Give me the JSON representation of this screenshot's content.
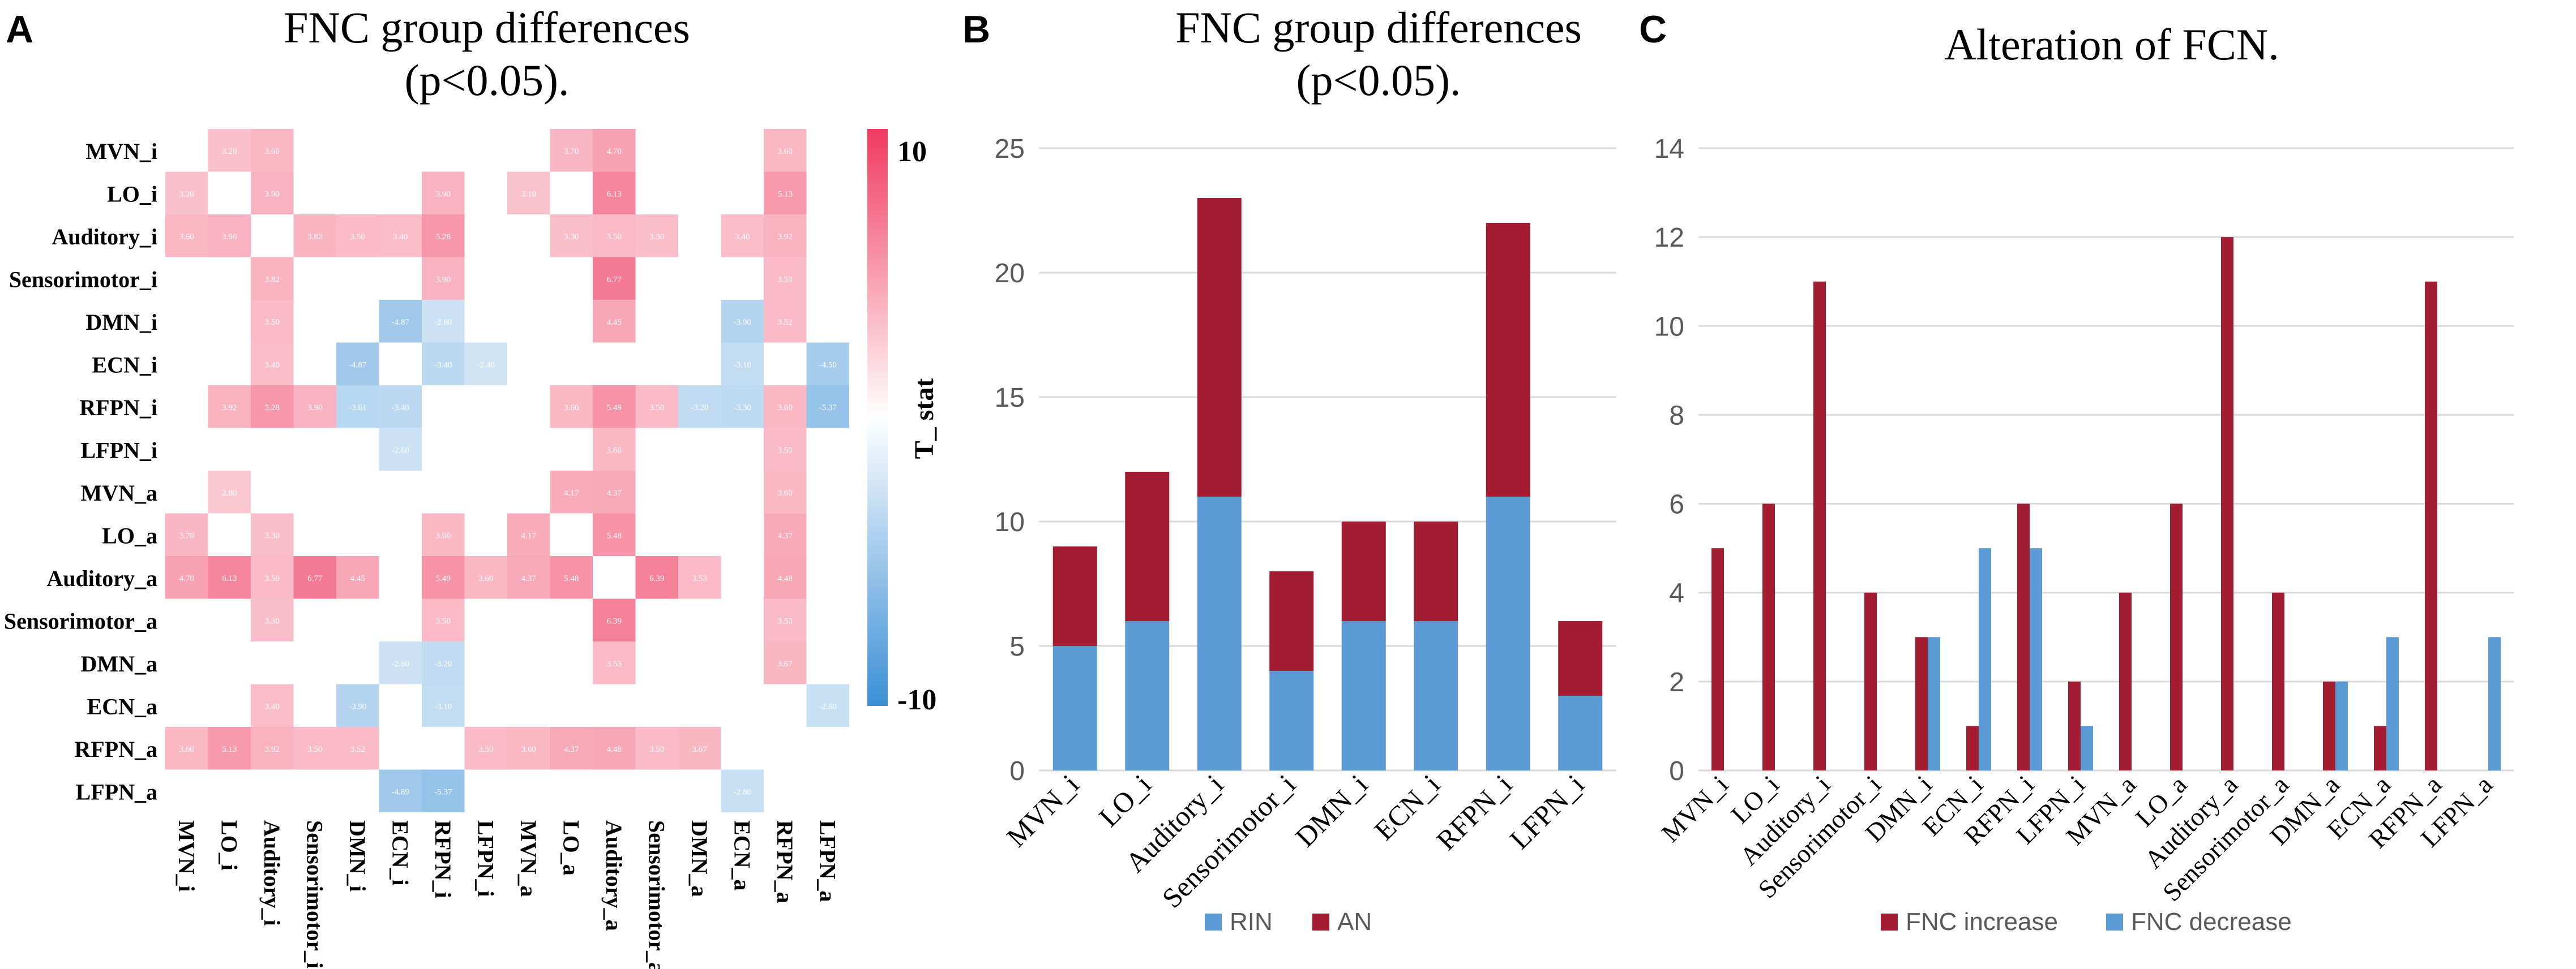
{
  "colors": {
    "positive": "#f03a5f",
    "negative": "#3b8fd6",
    "zero": "#ffffff",
    "rin": "#5b9bd5",
    "an": "#a21c32",
    "increase": "#a21c32",
    "decrease": "#5b9bd5",
    "grid": "#d9d9d9"
  },
  "chart_data": [
    {
      "panel": "A",
      "type": "heatmap",
      "title_line1": "FNC group differences",
      "title_line2": "(p<0.05).",
      "rows": [
        "MVN_i",
        "LO_i",
        "Auditory_i",
        "Sensorimotor_i",
        "DMN_i",
        "ECN_i",
        "RFPN_i",
        "LFPN_i",
        "MVN_a",
        "LO_a",
        "Auditory_a",
        "Sensorimotor_a",
        "DMN_a",
        "ECN_a",
        "RFPN_a",
        "LFPN_a"
      ],
      "cols": [
        "MVN_i",
        "LO_i",
        "Auditory_i",
        "Sensorimotor_i",
        "DMN_i",
        "ECN_i",
        "RFPN_i",
        "LFPN_i",
        "MVN_a",
        "LO_a",
        "Auditory_a",
        "Sensorimotor_a",
        "DMN_a",
        "ECN_a",
        "RFPN_a",
        "LFPN_a"
      ],
      "cells": [
        {
          "r": 0,
          "c": 1,
          "v": 3.2
        },
        {
          "r": 0,
          "c": 2,
          "v": 3.6
        },
        {
          "r": 0,
          "c": 9,
          "v": 3.7
        },
        {
          "r": 0,
          "c": 10,
          "v": 4.7
        },
        {
          "r": 0,
          "c": 14,
          "v": 3.6
        },
        {
          "r": 1,
          "c": 0,
          "v": 3.2
        },
        {
          "r": 1,
          "c": 2,
          "v": 3.9
        },
        {
          "r": 1,
          "c": 6,
          "v": 3.9
        },
        {
          "r": 1,
          "c": 8,
          "v": 3.1
        },
        {
          "r": 1,
          "c": 10,
          "v": 6.13
        },
        {
          "r": 1,
          "c": 14,
          "v": 5.13
        },
        {
          "r": 2,
          "c": 0,
          "v": 3.6
        },
        {
          "r": 2,
          "c": 1,
          "v": 3.9
        },
        {
          "r": 2,
          "c": 3,
          "v": 3.82
        },
        {
          "r": 2,
          "c": 4,
          "v": 3.5
        },
        {
          "r": 2,
          "c": 5,
          "v": 3.4
        },
        {
          "r": 2,
          "c": 6,
          "v": 5.28
        },
        {
          "r": 2,
          "c": 9,
          "v": 3.3
        },
        {
          "r": 2,
          "c": 10,
          "v": 3.5
        },
        {
          "r": 2,
          "c": 11,
          "v": 3.3
        },
        {
          "r": 2,
          "c": 13,
          "v": 3.4
        },
        {
          "r": 2,
          "c": 14,
          "v": 3.92
        },
        {
          "r": 3,
          "c": 2,
          "v": 3.82
        },
        {
          "r": 3,
          "c": 6,
          "v": 3.9
        },
        {
          "r": 3,
          "c": 10,
          "v": 6.77
        },
        {
          "r": 3,
          "c": 14,
          "v": 3.5
        },
        {
          "r": 4,
          "c": 2,
          "v": 3.5
        },
        {
          "r": 4,
          "c": 5,
          "v": -4.87
        },
        {
          "r": 4,
          "c": 6,
          "v": -2.6
        },
        {
          "r": 4,
          "c": 10,
          "v": 4.45
        },
        {
          "r": 4,
          "c": 13,
          "v": -3.9
        },
        {
          "r": 4,
          "c": 14,
          "v": 3.52
        },
        {
          "r": 5,
          "c": 2,
          "v": 3.4
        },
        {
          "r": 5,
          "c": 4,
          "v": -4.87
        },
        {
          "r": 5,
          "c": 6,
          "v": -3.4
        },
        {
          "r": 5,
          "c": 7,
          "v": -2.4
        },
        {
          "r": 5,
          "c": 13,
          "v": -3.1
        },
        {
          "r": 5,
          "c": 15,
          "v": -4.5
        },
        {
          "r": 6,
          "c": 1,
          "v": 3.92
        },
        {
          "r": 6,
          "c": 2,
          "v": 5.28
        },
        {
          "r": 6,
          "c": 3,
          "v": 3.9
        },
        {
          "r": 6,
          "c": 4,
          "v": -3.61
        },
        {
          "r": 6,
          "c": 5,
          "v": -3.4
        },
        {
          "r": 6,
          "c": 9,
          "v": 3.6
        },
        {
          "r": 6,
          "c": 10,
          "v": 5.49
        },
        {
          "r": 6,
          "c": 11,
          "v": 3.5
        },
        {
          "r": 6,
          "c": 12,
          "v": -3.2
        },
        {
          "r": 6,
          "c": 13,
          "v": -3.3
        },
        {
          "r": 6,
          "c": 14,
          "v": 3.6
        },
        {
          "r": 6,
          "c": 15,
          "v": -5.37
        },
        {
          "r": 7,
          "c": 5,
          "v": -2.6
        },
        {
          "r": 7,
          "c": 10,
          "v": 3.6
        },
        {
          "r": 7,
          "c": 14,
          "v": 3.5
        },
        {
          "r": 8,
          "c": 1,
          "v": 2.8
        },
        {
          "r": 8,
          "c": 9,
          "v": 4.17
        },
        {
          "r": 8,
          "c": 10,
          "v": 4.37
        },
        {
          "r": 8,
          "c": 14,
          "v": 3.6
        },
        {
          "r": 9,
          "c": 0,
          "v": 3.7
        },
        {
          "r": 9,
          "c": 2,
          "v": 3.3
        },
        {
          "r": 9,
          "c": 6,
          "v": 3.6
        },
        {
          "r": 9,
          "c": 8,
          "v": 4.17
        },
        {
          "r": 9,
          "c": 10,
          "v": 5.48
        },
        {
          "r": 9,
          "c": 14,
          "v": 4.37
        },
        {
          "r": 10,
          "c": 0,
          "v": 4.7
        },
        {
          "r": 10,
          "c": 1,
          "v": 6.13
        },
        {
          "r": 10,
          "c": 2,
          "v": 3.5
        },
        {
          "r": 10,
          "c": 3,
          "v": 6.77
        },
        {
          "r": 10,
          "c": 4,
          "v": 4.45
        },
        {
          "r": 10,
          "c": 6,
          "v": 5.49
        },
        {
          "r": 10,
          "c": 7,
          "v": 3.6
        },
        {
          "r": 10,
          "c": 8,
          "v": 4.37
        },
        {
          "r": 10,
          "c": 9,
          "v": 5.48
        },
        {
          "r": 10,
          "c": 11,
          "v": 6.39
        },
        {
          "r": 10,
          "c": 12,
          "v": 3.53
        },
        {
          "r": 10,
          "c": 14,
          "v": 4.48
        },
        {
          "r": 11,
          "c": 2,
          "v": 3.3
        },
        {
          "r": 11,
          "c": 6,
          "v": 3.5
        },
        {
          "r": 11,
          "c": 10,
          "v": 6.39
        },
        {
          "r": 11,
          "c": 14,
          "v": 3.5
        },
        {
          "r": 12,
          "c": 5,
          "v": -2.6
        },
        {
          "r": 12,
          "c": 6,
          "v": -3.2
        },
        {
          "r": 12,
          "c": 10,
          "v": 3.53
        },
        {
          "r": 12,
          "c": 14,
          "v": 3.67
        },
        {
          "r": 13,
          "c": 2,
          "v": 3.4
        },
        {
          "r": 13,
          "c": 4,
          "v": -3.9
        },
        {
          "r": 13,
          "c": 6,
          "v": -3.1
        },
        {
          "r": 13,
          "c": 15,
          "v": -2.8
        },
        {
          "r": 14,
          "c": 0,
          "v": 3.6
        },
        {
          "r": 14,
          "c": 1,
          "v": 5.13
        },
        {
          "r": 14,
          "c": 2,
          "v": 3.92
        },
        {
          "r": 14,
          "c": 3,
          "v": 3.5
        },
        {
          "r": 14,
          "c": 4,
          "v": 3.52
        },
        {
          "r": 14,
          "c": 7,
          "v": 3.5
        },
        {
          "r": 14,
          "c": 8,
          "v": 3.6
        },
        {
          "r": 14,
          "c": 9,
          "v": 4.37
        },
        {
          "r": 14,
          "c": 10,
          "v": 4.48
        },
        {
          "r": 14,
          "c": 11,
          "v": 3.5
        },
        {
          "r": 14,
          "c": 12,
          "v": 3.67
        },
        {
          "r": 15,
          "c": 5,
          "v": -4.89
        },
        {
          "r": 15,
          "c": 6,
          "v": -5.37
        },
        {
          "r": 15,
          "c": 13,
          "v": -2.8
        }
      ],
      "colorbar": {
        "label": "T_ stat",
        "min": -10,
        "max": 10,
        "ticks": [
          "10",
          "-10"
        ]
      }
    },
    {
      "panel": "B",
      "type": "bar",
      "stacked": true,
      "title_line1": "FNC group differences",
      "title_line2": "(p<0.05).",
      "categories": [
        "MVN_i",
        "LO_i",
        "Auditory_i",
        "Sensorimotor_i",
        "DMN_i",
        "ECN_i",
        "RFPN_i",
        "LFPN_i"
      ],
      "series": [
        {
          "name": "RIN",
          "values": [
            5,
            6,
            11,
            4,
            6,
            6,
            11,
            3
          ]
        },
        {
          "name": "AN",
          "values": [
            4,
            6,
            12,
            4,
            4,
            4,
            11,
            3
          ]
        }
      ],
      "ylim": [
        0,
        25
      ],
      "yticks": [
        0,
        5,
        10,
        15,
        20,
        25
      ],
      "legend": "bottom"
    },
    {
      "panel": "C",
      "type": "bar",
      "stacked": false,
      "title": "Alteration of FCN.",
      "categories": [
        "MVN_i",
        "LO_i",
        "Auditory_i",
        "Sensorimotor_i",
        "DMN_i",
        "ECN_i",
        "RFPN_i",
        "LFPN_i",
        "MVN_a",
        "LO_a",
        "Auditory_a",
        "Sensorimotor_a",
        "DMN_a",
        "ECN_a",
        "RFPN_a",
        "LFPN_a"
      ],
      "series": [
        {
          "name": "FNC increase",
          "values": [
            5,
            6,
            11,
            4,
            3,
            1,
            6,
            2,
            4,
            6,
            12,
            4,
            2,
            1,
            11,
            0
          ]
        },
        {
          "name": "FNC decrease",
          "values": [
            0,
            0,
            0,
            0,
            3,
            5,
            5,
            1,
            0,
            0,
            0,
            0,
            2,
            3,
            0,
            3
          ]
        }
      ],
      "ylim": [
        0,
        14
      ],
      "yticks": [
        0,
        2,
        4,
        6,
        8,
        10,
        12,
        14
      ],
      "legend": "bottom"
    }
  ],
  "panels": {
    "a": "A",
    "b": "B",
    "c": "C"
  }
}
